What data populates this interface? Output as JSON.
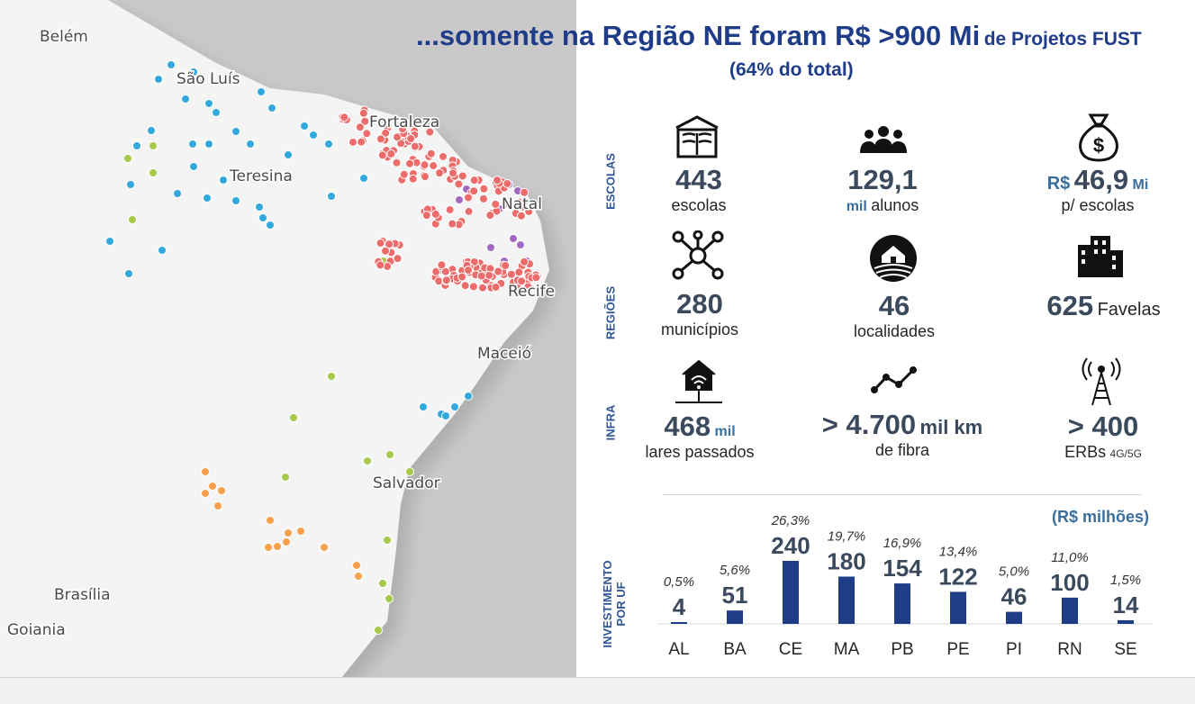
{
  "title": {
    "main": "...somente na Região NE foram R$ >900 Mi",
    "suffix": "de Projetos FUST",
    "subtitle": "(64% do total)"
  },
  "map": {
    "cities": [
      "Belém",
      "São Luís",
      "Fortaleza",
      "Teresina",
      "Natal",
      "Recife",
      "Maceió",
      "Salvador",
      "Brasília",
      "Goiania"
    ],
    "colors": {
      "blue": "#33a8dc",
      "red": "#ec6b6b",
      "purple": "#a06ac0",
      "green": "#a6c94a",
      "orange": "#f5a04a",
      "land": "#f4f4f4",
      "sea": "#c9c9c9"
    }
  },
  "sections": {
    "escolas": "ESCOLAS",
    "regioes": "REGIÕES",
    "infra": "INFRA",
    "investimento_line1": "INVESTIMENTO",
    "investimento_line2": "POR UF"
  },
  "escolas": {
    "schools": {
      "icon": "school-book-icon",
      "value": "443",
      "desc": "escolas"
    },
    "students": {
      "icon": "people-group-icon",
      "value": "129,1",
      "unit": "mil",
      "desc": "alunos"
    },
    "money": {
      "icon": "money-bag-icon",
      "prefix": "R$",
      "value": "46,9",
      "unit": "Mi",
      "desc": "p/ escolas"
    }
  },
  "regioes": {
    "municipios": {
      "icon": "network-hub-icon",
      "value": "280",
      "desc": "municípios"
    },
    "localidades": {
      "icon": "rural-house-icon",
      "value": "46",
      "desc": "localidades"
    },
    "favelas": {
      "icon": "city-buildings-icon",
      "value": "625",
      "desc": "Favelas"
    }
  },
  "infra": {
    "lares": {
      "icon": "wifi-house-icon",
      "value": "468",
      "unit": "mil",
      "desc": "lares passados"
    },
    "fibra": {
      "icon": "fiber-line-icon",
      "value": "> 4.700",
      "unit": "mil km",
      "desc": "de fibra"
    },
    "erbs": {
      "icon": "antenna-tower-icon",
      "value": "> 400",
      "desc": "ERBs",
      "desc_small": "4G/5G"
    }
  },
  "chart_data": {
    "type": "bar",
    "unit_label": "(R$ milhões)",
    "categories": [
      "AL",
      "BA",
      "CE",
      "MA",
      "PB",
      "PE",
      "PI",
      "RN",
      "SE"
    ],
    "values": [
      4,
      51,
      240,
      180,
      154,
      122,
      46,
      100,
      14
    ],
    "value_labels": [
      "4",
      "51",
      "240",
      "180",
      "154",
      "122",
      "46",
      "100",
      "14"
    ],
    "percent_labels": [
      "0,5%",
      "5,6%",
      "26,3%",
      "19,7%",
      "16,9%",
      "13,4%",
      "5,0%",
      "11,0%",
      "1,5%"
    ],
    "bar_color": "#1f3c88"
  }
}
